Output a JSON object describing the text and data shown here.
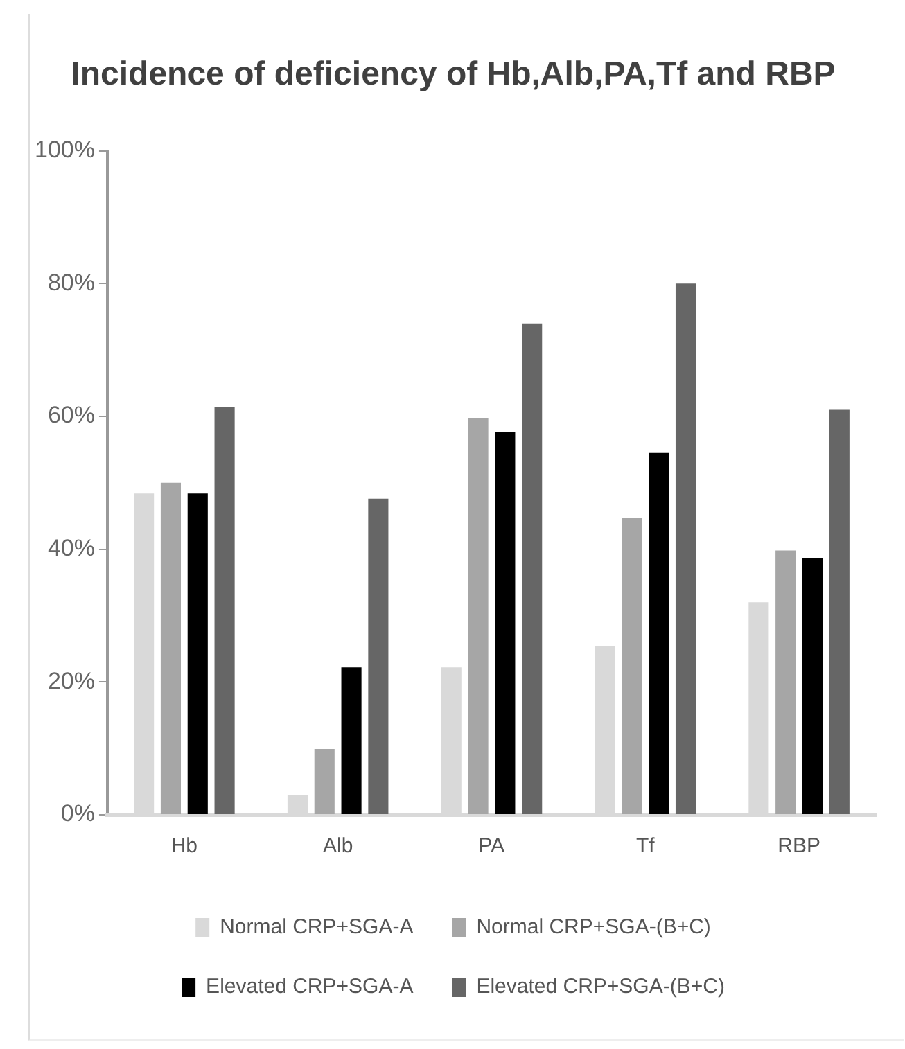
{
  "chart_data": {
    "type": "bar",
    "title": "Incidence of deficiency of Hb,Alb,PA,Tf and RBP",
    "categories": [
      "Hb",
      "Alb",
      "PA",
      "Tf",
      "RBP"
    ],
    "series": [
      {
        "name": "Normal CRP+SGA-A",
        "color": "#d9d9d9",
        "values": [
          48.4,
          3,
          22.2,
          25.4,
          32
        ]
      },
      {
        "name": "Normal CRP+SGA-(B+C)",
        "color": "#a6a6a6",
        "values": [
          50,
          9.9,
          59.8,
          44.7,
          39.8
        ]
      },
      {
        "name": "Elevated CRP+SGA-A",
        "color": "#000000",
        "values": [
          48.4,
          22.2,
          57.7,
          54.5,
          38.6
        ]
      },
      {
        "name": "Elevated CRP+SGA-(B+C)",
        "color": "#666666",
        "values": [
          61.4,
          47.6,
          74,
          80,
          61
        ]
      }
    ],
    "ylim": [
      0,
      100
    ],
    "yticks": [
      {
        "value": 0,
        "label": "0%"
      },
      {
        "value": 20,
        "label": "20%"
      },
      {
        "value": 40,
        "label": "40%"
      },
      {
        "value": 60,
        "label": "60%"
      },
      {
        "value": 80,
        "label": "80%"
      },
      {
        "value": 100,
        "label": "100%"
      }
    ],
    "grid": false,
    "legend": "bottom"
  }
}
